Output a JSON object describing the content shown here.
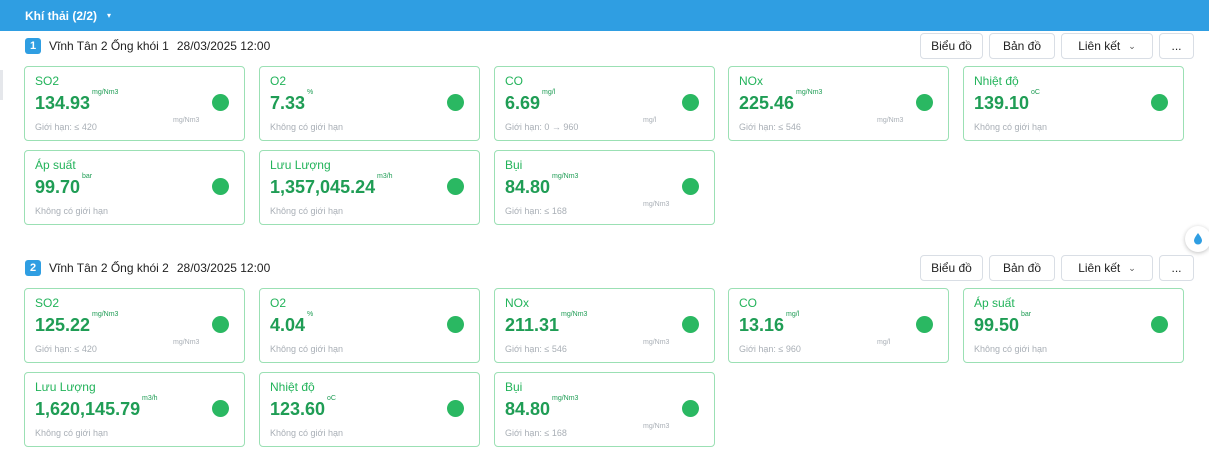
{
  "header": {
    "title": "Khí thải (2/2)",
    "caret": "▾"
  },
  "sections": [
    {
      "index": "1",
      "station": "Vĩnh Tân 2 Ống khói 1",
      "datetime": "28/03/2025 12:00",
      "buttons": {
        "chart": "Biểu đồ",
        "map": "Bản đồ",
        "link": "Liên kết",
        "link_chevron": "⌄",
        "more": "..."
      },
      "cards": [
        {
          "name": "SO2",
          "value": "134.93",
          "unit": "mg/Nm3",
          "limit": "Giới hạn: ≤ 420",
          "limit_unit": "mg/Nm3",
          "status_color": "#2ab862"
        },
        {
          "name": "O2",
          "value": "7.33",
          "unit": "%",
          "limit": "Không có giới hạn",
          "limit_unit": "",
          "status_color": "#2ab862"
        },
        {
          "name": "CO",
          "value": "6.69",
          "unit": "mg/l",
          "limit": "Giới hạn: 0 → 960",
          "limit_unit": "mg/l",
          "status_color": "#2ab862"
        },
        {
          "name": "NOx",
          "value": "225.46",
          "unit": "mg/Nm3",
          "limit": "Giới hạn: ≤ 546",
          "limit_unit": "mg/Nm3",
          "status_color": "#2ab862"
        },
        {
          "name": "Nhiệt độ",
          "value": "139.10",
          "unit": "oC",
          "limit": "Không có giới hạn",
          "limit_unit": "",
          "status_color": "#2ab862"
        },
        {
          "name": "Áp suất",
          "value": "99.70",
          "unit": "bar",
          "limit": "Không có giới hạn",
          "limit_unit": "",
          "status_color": "#2ab862"
        },
        {
          "name": "Lưu Lượng",
          "value": "1,357,045.24",
          "unit": "m3/h",
          "limit": "Không có giới hạn",
          "limit_unit": "",
          "status_color": "#2ab862"
        },
        {
          "name": "Bụi",
          "value": "84.80",
          "unit": "mg/Nm3",
          "limit": "Giới hạn: ≤ 168",
          "limit_unit": "mg/Nm3",
          "status_color": "#2ab862"
        }
      ]
    },
    {
      "index": "2",
      "station": "Vĩnh Tân 2 Ống khói 2",
      "datetime": "28/03/2025 12:00",
      "buttons": {
        "chart": "Biểu đồ",
        "map": "Bản đồ",
        "link": "Liên kết",
        "link_chevron": "⌄",
        "more": "..."
      },
      "cards": [
        {
          "name": "SO2",
          "value": "125.22",
          "unit": "mg/Nm3",
          "limit": "Giới hạn: ≤ 420",
          "limit_unit": "mg/Nm3",
          "status_color": "#2ab862"
        },
        {
          "name": "O2",
          "value": "4.04",
          "unit": "%",
          "limit": "Không có giới hạn",
          "limit_unit": "",
          "status_color": "#2ab862"
        },
        {
          "name": "NOx",
          "value": "211.31",
          "unit": "mg/Nm3",
          "limit": "Giới hạn: ≤ 546",
          "limit_unit": "mg/Nm3",
          "status_color": "#2ab862"
        },
        {
          "name": "CO",
          "value": "13.16",
          "unit": "mg/l",
          "limit": "Giới hạn: ≤ 960",
          "limit_unit": "mg/l",
          "status_color": "#2ab862"
        },
        {
          "name": "Áp suất",
          "value": "99.50",
          "unit": "bar",
          "limit": "Không có giới hạn",
          "limit_unit": "",
          "status_color": "#2ab862"
        },
        {
          "name": "Lưu Lượng",
          "value": "1,620,145.79",
          "unit": "m3/h",
          "limit": "Không có giới hạn",
          "limit_unit": "",
          "status_color": "#2ab862"
        },
        {
          "name": "Nhiệt độ",
          "value": "123.60",
          "unit": "oC",
          "limit": "Không có giới hạn",
          "limit_unit": "",
          "status_color": "#2ab862"
        },
        {
          "name": "Bụi",
          "value": "84.80",
          "unit": "mg/Nm3",
          "limit": "Giới hạn: ≤ 168",
          "limit_unit": "mg/Nm3",
          "status_color": "#2ab862"
        }
      ]
    }
  ],
  "theme": {
    "accent": "#2f9ee2",
    "ok": "#2ab862"
  }
}
